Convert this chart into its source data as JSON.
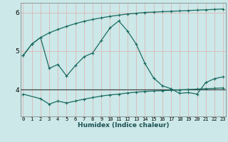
{
  "xlabel": "Humidex (Indice chaleur)",
  "bg_color": "#cce8e8",
  "line_color": "#1a6b60",
  "hline_color": "#444444",
  "x_ticks": [
    0,
    1,
    2,
    3,
    4,
    5,
    6,
    7,
    8,
    9,
    10,
    11,
    12,
    13,
    14,
    15,
    16,
    17,
    18,
    19,
    20,
    21,
    22,
    23
  ],
  "x_ticklabels": [
    "0",
    "1",
    "2",
    "3",
    "4",
    "5",
    "6",
    "7",
    "8",
    "9",
    "10",
    "11",
    "12",
    "13",
    "14",
    "15",
    "16",
    "17",
    "18",
    "19",
    "20",
    "21",
    "22",
    "23"
  ],
  "y_ticks": [
    4,
    5,
    6
  ],
  "ylim": [
    3.3,
    6.25
  ],
  "xlim": [
    -0.3,
    23.3
  ],
  "curve1_x": [
    0,
    1,
    2,
    3,
    4,
    5,
    6,
    7,
    8,
    9,
    10,
    11,
    12,
    13,
    14,
    15,
    16,
    17,
    18,
    19,
    20,
    21,
    22,
    23
  ],
  "curve1_y": [
    4.88,
    5.18,
    5.35,
    5.47,
    5.56,
    5.64,
    5.71,
    5.77,
    5.82,
    5.86,
    5.9,
    5.93,
    5.96,
    5.98,
    6.0,
    6.01,
    6.02,
    6.03,
    6.04,
    6.05,
    6.06,
    6.07,
    6.08,
    6.09
  ],
  "curve2_x": [
    0,
    1,
    2,
    3,
    4,
    5,
    6,
    7,
    8,
    9,
    10,
    11,
    12,
    13,
    14,
    15,
    16,
    17,
    18,
    19,
    20,
    21,
    22,
    23
  ],
  "curve2_y": [
    4.88,
    5.18,
    5.35,
    4.55,
    4.65,
    4.35,
    4.62,
    4.85,
    4.95,
    5.28,
    5.6,
    5.78,
    5.52,
    5.18,
    4.68,
    4.3,
    4.1,
    4.02,
    3.9,
    3.92,
    3.88,
    4.18,
    4.28,
    4.33
  ],
  "curve3_x": [
    0,
    2,
    3,
    4,
    5,
    6,
    7,
    8,
    9,
    10,
    11,
    12,
    13,
    14,
    15,
    16,
    17,
    18,
    19,
    20,
    21,
    22,
    23
  ],
  "curve3_y": [
    3.88,
    3.76,
    3.62,
    3.7,
    3.65,
    3.7,
    3.75,
    3.79,
    3.83,
    3.86,
    3.88,
    3.91,
    3.93,
    3.95,
    3.96,
    3.97,
    3.98,
    3.99,
    4.0,
    4.01,
    4.02,
    4.03,
    4.04
  ],
  "hline_y": 4.0,
  "vgrid_color": "#ddb8b8",
  "hgrid_color": "#ddb8b8"
}
